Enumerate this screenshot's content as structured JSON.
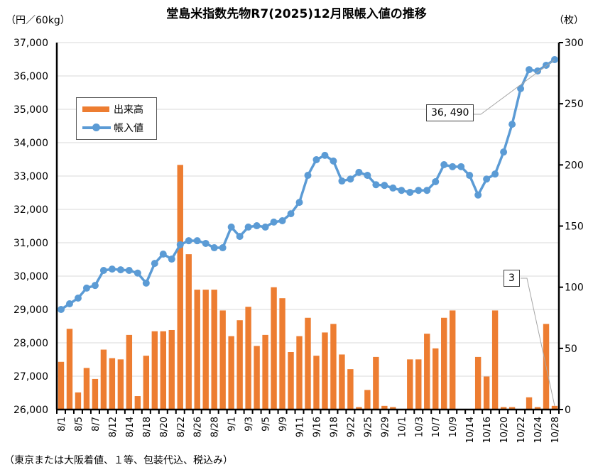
{
  "chart_data": {
    "type": "bar+line",
    "title": "堂島米指数先物R7(2025)12月限帳入値の推移",
    "left_unit": "（円／60kg）",
    "right_unit": "（枚）",
    "footnote": "（東京または大阪着値、１等、包装代込、税込み）",
    "categories": [
      "8/1",
      "8/4",
      "8/5",
      "8/6",
      "8/7",
      "8/8",
      "8/12",
      "8/13",
      "8/14",
      "8/15",
      "8/18",
      "8/19",
      "8/20",
      "8/21",
      "8/22",
      "8/25",
      "8/26",
      "8/27",
      "8/28",
      "8/29",
      "9/1",
      "9/2",
      "9/3",
      "9/4",
      "9/5",
      "9/8",
      "9/9",
      "9/10",
      "9/11",
      "9/12",
      "9/16",
      "9/17",
      "9/18",
      "9/19",
      "9/22",
      "9/24",
      "9/25",
      "9/26",
      "9/29",
      "9/30",
      "10/1",
      "10/2",
      "10/3",
      "10/6",
      "10/7",
      "10/8",
      "10/9",
      "10/10",
      "10/14",
      "10/15",
      "10/16",
      "10/17",
      "10/20",
      "10/21",
      "10/22",
      "10/23",
      "10/24",
      "10/27",
      "10/28"
    ],
    "x_tick_labels": [
      "8/1",
      "8/5",
      "8/7",
      "8/12",
      "8/14",
      "8/18",
      "8/20",
      "8/22",
      "8/26",
      "8/28",
      "9/1",
      "9/3",
      "9/5",
      "9/9",
      "9/11",
      "9/16",
      "9/18",
      "9/22",
      "9/25",
      "9/29",
      "10/1",
      "10/3",
      "10/7",
      "10/9",
      "10/14",
      "10/16",
      "10/20",
      "10/22",
      "10/24",
      "10/28"
    ],
    "series": [
      {
        "name": "出来高",
        "type": "bar",
        "axis": "right",
        "color": "#ED7D31",
        "values": [
          39,
          66,
          14,
          34,
          25,
          49,
          42,
          41,
          61,
          11,
          44,
          64,
          64,
          65,
          200,
          127,
          98,
          98,
          98,
          81,
          60,
          73,
          84,
          52,
          61,
          100,
          91,
          47,
          60,
          75,
          44,
          63,
          70,
          45,
          33,
          2,
          16,
          43,
          3,
          2,
          0,
          41,
          41,
          62,
          50,
          75,
          81,
          0,
          0,
          43,
          27,
          81,
          2,
          2,
          0,
          10,
          2,
          70,
          3
        ]
      },
      {
        "name": "帳入値",
        "type": "line",
        "axis": "left",
        "color": "#5B9BD5",
        "values": [
          29000,
          29170,
          29340,
          29640,
          29720,
          30170,
          30210,
          30190,
          30170,
          30090,
          29790,
          30380,
          30660,
          30510,
          30940,
          31060,
          31060,
          30980,
          30850,
          30850,
          31470,
          31190,
          31470,
          31510,
          31470,
          31620,
          31660,
          31870,
          32210,
          33020,
          33490,
          33620,
          33450,
          32850,
          32910,
          33110,
          33020,
          32740,
          32720,
          32640,
          32570,
          32510,
          32570,
          32570,
          32830,
          33340,
          33280,
          33280,
          33020,
          32430,
          32910,
          33060,
          33720,
          34550,
          35620,
          36190,
          36150,
          36320,
          36490
        ]
      }
    ],
    "left_axis": {
      "min": 26000,
      "max": 37000,
      "step": 1000,
      "tick_labels": [
        "26,000",
        "27,000",
        "28,000",
        "29,000",
        "30,000",
        "31,000",
        "32,000",
        "33,000",
        "34,000",
        "35,000",
        "36,000",
        "37,000"
      ]
    },
    "right_axis": {
      "min": 0,
      "max": 300,
      "step": 50,
      "tick_labels": [
        "0",
        "50",
        "100",
        "150",
        "200",
        "250",
        "300"
      ]
    },
    "grid": true,
    "legend_position": "upper-left",
    "annotations": {
      "last_price": "36, 490",
      "last_volume": "3"
    }
  }
}
